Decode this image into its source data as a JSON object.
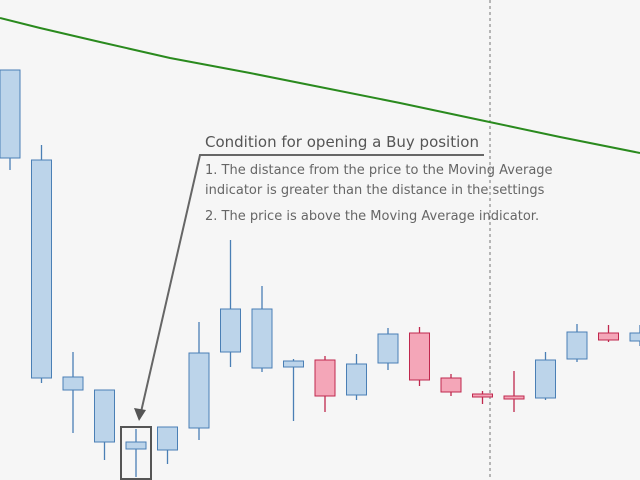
{
  "colors": {
    "background": "#f6f6f6",
    "bullish_fill": "#bcd4ea",
    "bullish_border": "#4a7fb5",
    "bearish_fill": "#f4a6b8",
    "bearish_border": "#c0284e",
    "moving_average": "#2a8a1e",
    "annotation": "#5a5a5a",
    "cursor_line": "#777777"
  },
  "annotation": {
    "title": "Condition for opening a Buy position",
    "line1a": "1. The distance from the price to the Moving Average",
    "line1b": "indicator is greater than the distance in the settings",
    "line2": "2. The price is above the Moving Average indicator."
  },
  "chart_data": {
    "type": "candlestick",
    "ylim": [
      0,
      480
    ],
    "grid": false,
    "highlighted_candle_index": 4,
    "candles": [
      {
        "open": 322,
        "high": 410,
        "low": 310,
        "close": 410
      },
      {
        "open": 102,
        "high": 335,
        "low": 97,
        "close": 320
      },
      {
        "open": 90,
        "high": 128,
        "low": 47,
        "close": 103
      },
      {
        "open": 38,
        "high": 90,
        "low": 20,
        "close": 90
      },
      {
        "open": 31,
        "high": 51,
        "low": 3,
        "close": 38
      },
      {
        "open": 30,
        "high": 53,
        "low": 16,
        "close": 53
      },
      {
        "open": 52,
        "high": 158,
        "low": 40,
        "close": 127
      },
      {
        "open": 128,
        "high": 240,
        "low": 113,
        "close": 171
      },
      {
        "open": 112,
        "high": 194,
        "low": 108,
        "close": 171
      },
      {
        "open": 113,
        "high": 121,
        "low": 59,
        "close": 119
      },
      {
        "open": 120,
        "high": 124,
        "low": 68,
        "close": 84
      },
      {
        "open": 85,
        "high": 126,
        "low": 80,
        "close": 116
      },
      {
        "open": 117,
        "high": 152,
        "low": 110,
        "close": 146
      },
      {
        "open": 147,
        "high": 153,
        "low": 94,
        "close": 100
      },
      {
        "open": 102,
        "high": 106,
        "low": 84,
        "close": 88
      },
      {
        "open": 86,
        "high": 89,
        "low": 76,
        "close": 84
      },
      {
        "open": 84,
        "high": 109,
        "low": 68,
        "close": 82
      },
      {
        "open": 82,
        "high": 128,
        "low": 80,
        "close": 120
      },
      {
        "open": 121,
        "high": 156,
        "low": 118,
        "close": 148
      },
      {
        "open": 147,
        "high": 155,
        "low": 138,
        "close": 140
      },
      {
        "open": 139,
        "high": 155,
        "low": 134,
        "close": 147
      }
    ],
    "moving_average": [
      {
        "x": 0,
        "y": 462
      },
      {
        "x": 40,
        "y": 452
      },
      {
        "x": 100,
        "y": 438
      },
      {
        "x": 170,
        "y": 422
      },
      {
        "x": 250,
        "y": 407
      },
      {
        "x": 320,
        "y": 393
      },
      {
        "x": 400,
        "y": 377
      },
      {
        "x": 480,
        "y": 360
      },
      {
        "x": 560,
        "y": 343
      },
      {
        "x": 640,
        "y": 327
      }
    ]
  }
}
